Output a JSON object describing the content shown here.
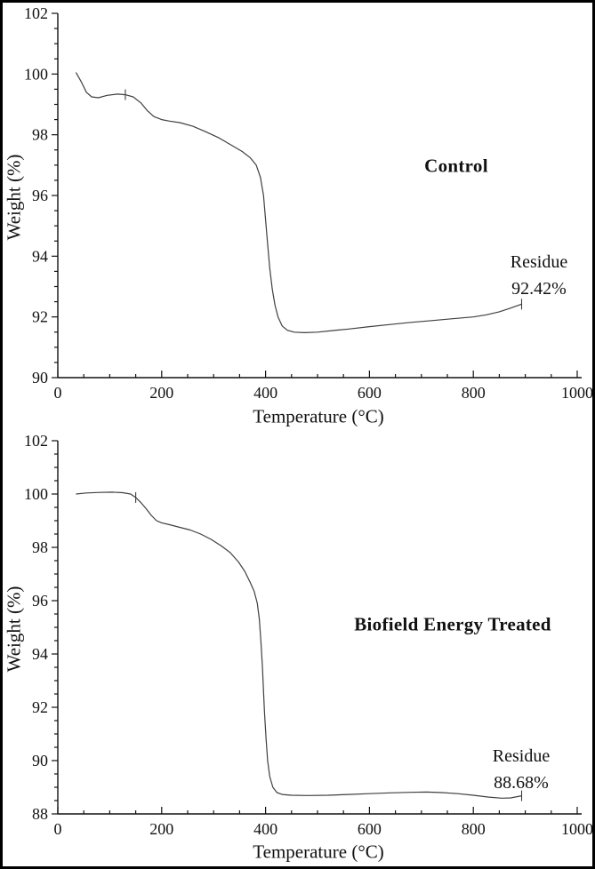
{
  "figure": {
    "background_color": "#ffffff",
    "border_color": "#000000"
  },
  "chart_data": [
    {
      "type": "line",
      "panel": "top",
      "annotation_label": "Control",
      "residue_label": "Residue",
      "residue_value": "92.42%",
      "xlabel": "Temperature (°C)",
      "ylabel": "Weight (%)",
      "xlim": [
        0,
        1000
      ],
      "ylim": [
        90,
        102
      ],
      "x_ticks": [
        0,
        200,
        400,
        600,
        800,
        1000
      ],
      "y_ticks": [
        90,
        92,
        94,
        96,
        98,
        100,
        102
      ],
      "x_minor_step": 50,
      "y_minor_step": 0.5,
      "grid": false,
      "legend": "none",
      "line_color": "#3f3f3f",
      "marker_x": [
        130,
        893
      ],
      "series": [
        {
          "name": "Control TGA curve",
          "points": [
            [
              35,
              100.05
            ],
            [
              45,
              99.75
            ],
            [
              55,
              99.4
            ],
            [
              65,
              99.25
            ],
            [
              78,
              99.22
            ],
            [
              95,
              99.3
            ],
            [
              115,
              99.34
            ],
            [
              130,
              99.32
            ],
            [
              145,
              99.25
            ],
            [
              160,
              99.05
            ],
            [
              172,
              98.8
            ],
            [
              185,
              98.6
            ],
            [
              200,
              98.5
            ],
            [
              215,
              98.45
            ],
            [
              235,
              98.4
            ],
            [
              260,
              98.28
            ],
            [
              285,
              98.1
            ],
            [
              310,
              97.9
            ],
            [
              335,
              97.65
            ],
            [
              355,
              97.45
            ],
            [
              370,
              97.25
            ],
            [
              382,
              97.0
            ],
            [
              390,
              96.6
            ],
            [
              396,
              96.0
            ],
            [
              400,
              95.2
            ],
            [
              404,
              94.4
            ],
            [
              408,
              93.6
            ],
            [
              413,
              92.9
            ],
            [
              418,
              92.4
            ],
            [
              424,
              92.0
            ],
            [
              432,
              91.7
            ],
            [
              442,
              91.56
            ],
            [
              455,
              91.5
            ],
            [
              475,
              91.48
            ],
            [
              500,
              91.5
            ],
            [
              530,
              91.55
            ],
            [
              560,
              91.6
            ],
            [
              600,
              91.68
            ],
            [
              640,
              91.75
            ],
            [
              680,
              91.82
            ],
            [
              720,
              91.88
            ],
            [
              760,
              91.94
            ],
            [
              800,
              92.0
            ],
            [
              825,
              92.07
            ],
            [
              850,
              92.17
            ],
            [
              870,
              92.28
            ],
            [
              893,
              92.42
            ]
          ]
        }
      ]
    },
    {
      "type": "line",
      "panel": "bottom",
      "annotation_label": "Biofield Energy Treated",
      "residue_label": "Residue",
      "residue_value": "88.68%",
      "xlabel": "Temperature (°C)",
      "ylabel": "Weight (%)",
      "xlim": [
        0,
        1000
      ],
      "ylim": [
        88,
        102
      ],
      "x_ticks": [
        0,
        200,
        400,
        600,
        800,
        1000
      ],
      "y_ticks": [
        88,
        90,
        92,
        94,
        96,
        98,
        100,
        102
      ],
      "x_minor_step": 50,
      "y_minor_step": 0.5,
      "grid": false,
      "legend": "none",
      "line_color": "#3f3f3f",
      "marker_x": [
        150,
        893
      ],
      "series": [
        {
          "name": "Biofield Energy Treated TGA curve",
          "points": [
            [
              35,
              100.0
            ],
            [
              55,
              100.04
            ],
            [
              80,
              100.06
            ],
            [
              105,
              100.07
            ],
            [
              125,
              100.05
            ],
            [
              140,
              100.0
            ],
            [
              150,
              99.87
            ],
            [
              160,
              99.68
            ],
            [
              170,
              99.45
            ],
            [
              180,
              99.2
            ],
            [
              190,
              99.0
            ],
            [
              200,
              98.92
            ],
            [
              215,
              98.85
            ],
            [
              235,
              98.75
            ],
            [
              255,
              98.65
            ],
            [
              275,
              98.5
            ],
            [
              295,
              98.3
            ],
            [
              315,
              98.05
            ],
            [
              332,
              97.8
            ],
            [
              348,
              97.45
            ],
            [
              360,
              97.1
            ],
            [
              370,
              96.7
            ],
            [
              378,
              96.35
            ],
            [
              384,
              95.9
            ],
            [
              388,
              95.3
            ],
            [
              391,
              94.5
            ],
            [
              394,
              93.5
            ],
            [
              396,
              92.6
            ],
            [
              398,
              91.8
            ],
            [
              401,
              90.8
            ],
            [
              404,
              90.0
            ],
            [
              408,
              89.4
            ],
            [
              414,
              89.0
            ],
            [
              422,
              88.8
            ],
            [
              432,
              88.73
            ],
            [
              450,
              88.7
            ],
            [
              480,
              88.69
            ],
            [
              520,
              88.7
            ],
            [
              560,
              88.73
            ],
            [
              600,
              88.76
            ],
            [
              640,
              88.79
            ],
            [
              680,
              88.81
            ],
            [
              710,
              88.82
            ],
            [
              740,
              88.8
            ],
            [
              770,
              88.76
            ],
            [
              800,
              88.7
            ],
            [
              830,
              88.63
            ],
            [
              855,
              88.59
            ],
            [
              872,
              88.6
            ],
            [
              893,
              88.68
            ]
          ]
        }
      ]
    }
  ]
}
